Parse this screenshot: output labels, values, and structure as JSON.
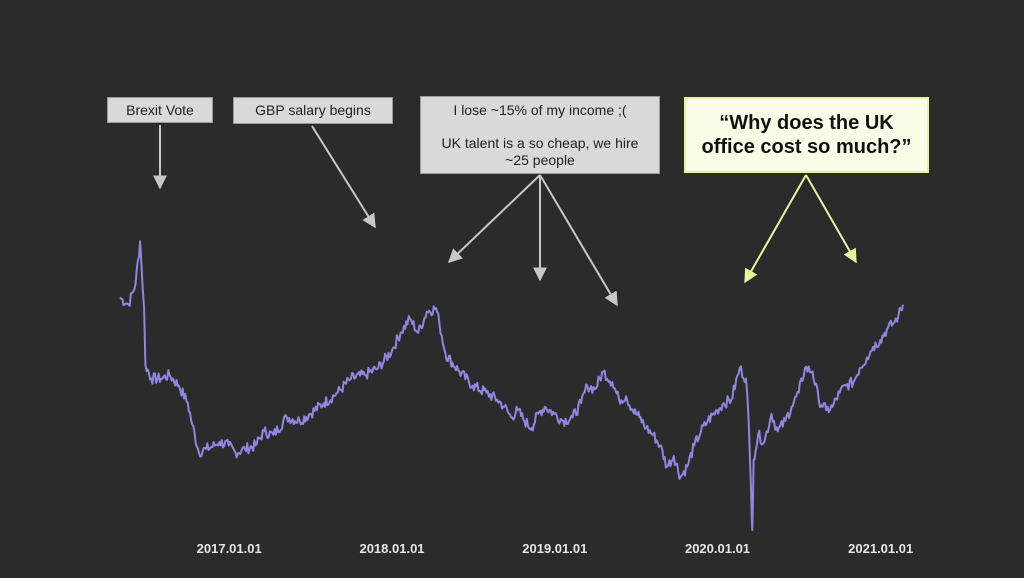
{
  "colors": {
    "background": "#2b2b2b",
    "line": "#8f86e0",
    "annotation_box": "#d9d9d9",
    "annotation_arrow": "#c8c8c8",
    "highlight_box": "#fbfde8",
    "highlight_arrow": "#e6f59a"
  },
  "annotations": {
    "brexit": "Brexit Vote",
    "salary": "GBP salary begins",
    "income_line1": "I lose ~15% of my income ;(",
    "income_line2": "UK talent is a so cheap, we hire",
    "income_line3": "~25 people",
    "quote_line1": "“Why does the UK",
    "quote_line2": "office cost so much?”"
  },
  "chart_data": {
    "type": "line",
    "title": "",
    "xlabel": "",
    "ylabel": "",
    "grid": false,
    "legend": "none",
    "x_tick_labels": [
      "2017.01.01",
      "2018.01.01",
      "2019.01.01",
      "2020.01.01",
      "2021.01.01"
    ],
    "xlim": [
      "2016.05.01",
      "2021.02.20"
    ],
    "ylim": [
      0,
      100
    ],
    "y_note": "y axis is unlabeled; values are on a relative 0-100 scale",
    "series": [
      {
        "x": [
          "2016.05.01",
          "2016.05.20",
          "2016.06.05",
          "2016.06.15",
          "2016.06.24",
          "2016.06.27",
          "2016.07.10",
          "2016.08.01",
          "2016.08.20",
          "2016.09.10",
          "2016.09.30",
          "2016.10.10",
          "2016.10.25",
          "2016.11.10",
          "2016.11.30",
          "2016.12.10",
          "2016.12.31",
          "2017.01.15",
          "2017.02.05",
          "2017.03.01",
          "2017.03.20",
          "2017.04.10",
          "2017.05.10",
          "2017.06.08",
          "2017.07.01",
          "2017.08.01",
          "2017.09.01",
          "2017.10.01",
          "2017.11.01",
          "2017.12.01",
          "2018.01.01",
          "2018.01.20",
          "2018.02.10",
          "2018.03.01",
          "2018.03.20",
          "2018.04.10",
          "2018.04.17",
          "2018.05.01",
          "2018.06.01",
          "2018.07.01",
          "2018.08.01",
          "2018.08.25",
          "2018.09.10",
          "2018.09.25",
          "2018.10.10",
          "2018.10.25",
          "2018.11.10",
          "2018.11.25",
          "2018.12.10",
          "2018.12.31",
          "2019.01.20",
          "2019.02.10",
          "2019.03.01",
          "2019.03.15",
          "2019.04.01",
          "2019.04.20",
          "2019.05.10",
          "2019.05.25",
          "2019.06.10",
          "2019.06.25",
          "2019.07.10",
          "2019.07.25",
          "2019.08.10",
          "2019.08.25",
          "2019.09.10",
          "2019.09.25",
          "2019.10.10",
          "2019.10.25",
          "2019.11.10",
          "2019.11.25",
          "2019.12.10",
          "2019.12.31",
          "2020.01.15",
          "2020.02.01",
          "2020.02.20",
          "2020.03.05",
          "2020.03.10",
          "2020.03.13",
          "2020.03.17",
          "2020.03.19",
          "2020.03.22",
          "2020.03.26",
          "2020.04.01",
          "2020.04.15",
          "2020.05.01",
          "2020.05.15",
          "2020.06.01",
          "2020.06.15",
          "2020.07.01",
          "2020.07.15",
          "2020.08.01",
          "2020.08.15",
          "2020.09.01",
          "2020.09.15",
          "2020.10.01",
          "2020.10.15",
          "2020.11.01",
          "2020.11.15",
          "2020.12.01",
          "2020.12.15",
          "2020.12.31",
          "2021.01.15",
          "2021.02.01",
          "2021.02.10",
          "2021.02.20"
        ],
        "y": [
          68,
          66,
          72,
          84,
          65,
          49,
          45,
          45,
          46,
          43,
          38,
          32,
          24,
          25,
          26,
          27,
          26,
          24,
          25,
          26,
          30,
          29,
          34,
          33,
          35,
          38,
          41,
          45,
          46,
          48,
          53,
          58,
          62,
          58,
          64,
          65,
          61,
          52,
          47,
          43,
          41,
          39,
          37,
          34,
          36,
          33,
          31,
          35,
          37,
          35,
          33,
          34,
          38,
          43,
          42,
          47,
          44,
          39,
          40,
          36,
          34,
          31,
          29,
          26,
          20,
          23,
          17,
          20,
          26,
          30,
          33,
          36,
          38,
          39,
          48,
          45,
          35,
          25,
          10,
          2,
          22,
          24,
          29,
          27,
          35,
          30,
          33,
          37,
          41,
          48,
          47,
          39,
          36,
          37,
          41,
          43,
          44,
          48,
          51,
          54,
          56,
          59,
          61,
          63,
          66
        ]
      }
    ]
  }
}
